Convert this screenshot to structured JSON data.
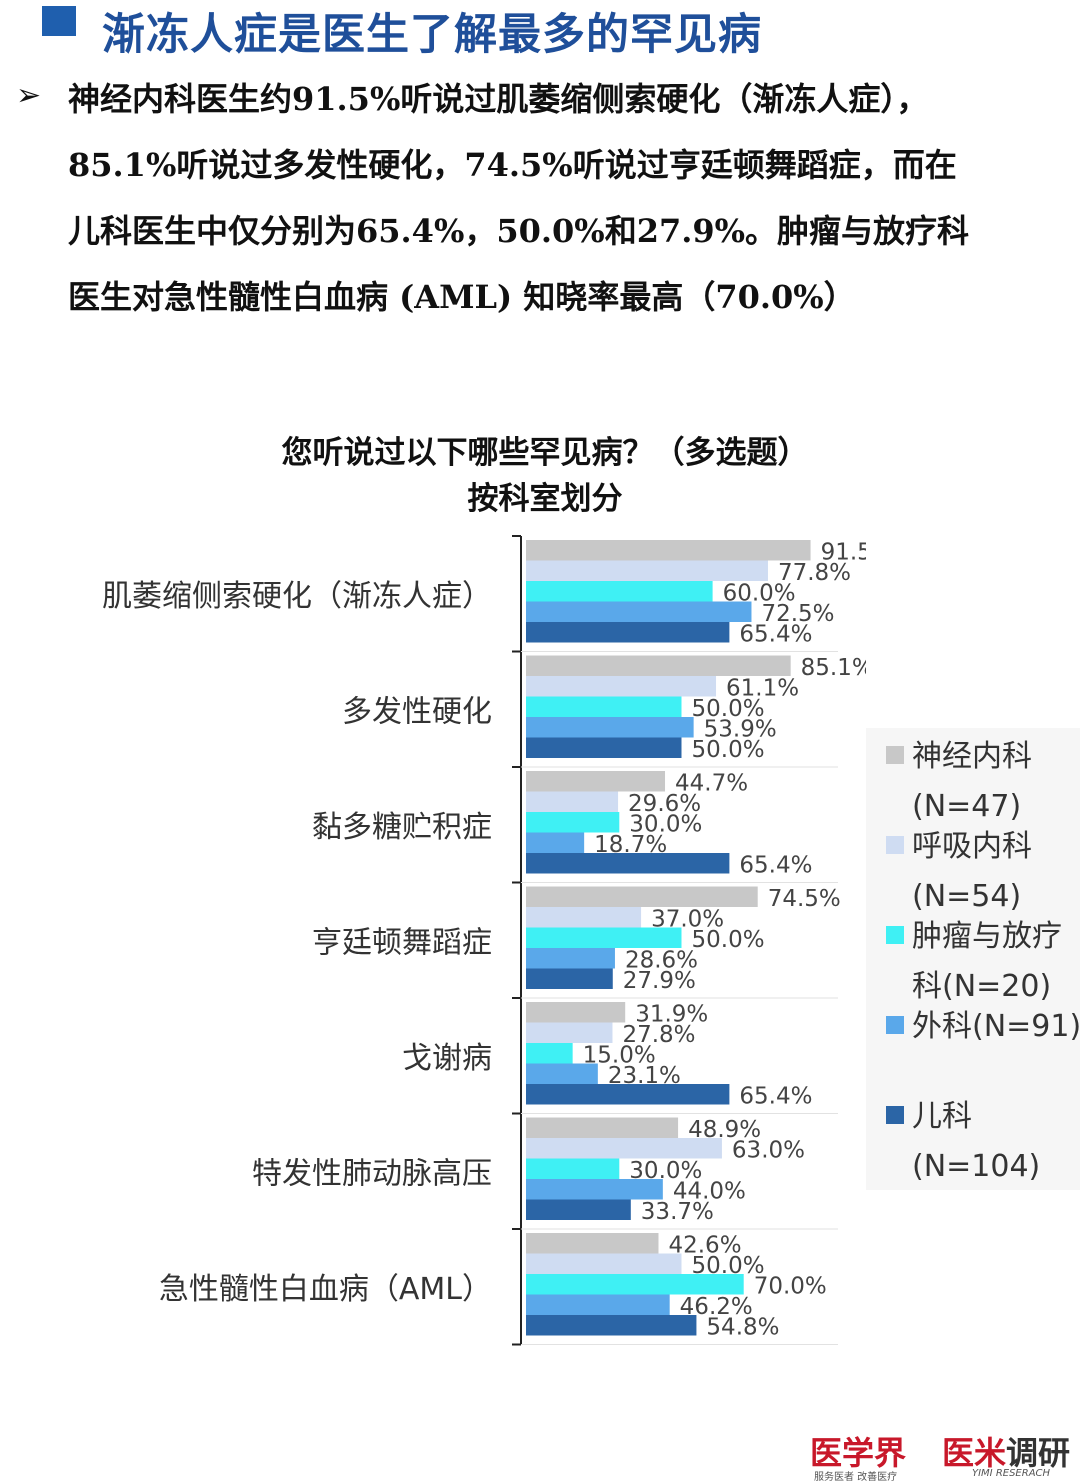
{
  "header": {
    "title": "渐冻人症是医生了解最多的罕见病"
  },
  "summary": {
    "bullet": "➢",
    "lines": [
      "神经内科医生约91.5%听说过肌萎缩侧索硬化（渐冻人症），",
      "85.1%听说过多发性硬化，74.5%听说过亨廷顿舞蹈症，而在",
      "儿科医生中仅分别为65.4%，50.0%和27.9%。肿瘤与放疗科",
      "医生对急性髓性白血病 (AML) 知晓率最高（70.0%）"
    ]
  },
  "chart_title": {
    "line1": "您听说过以下哪些罕见病？（多选题）",
    "line2": "按科室划分"
  },
  "chart_data": {
    "type": "bar",
    "orientation": "horizontal",
    "categories": [
      "肌萎缩侧索硬化（渐冻人症）",
      "多发性硬化",
      "黏多糖贮积症",
      "亨廷顿舞蹈症",
      "戈谢病",
      "特发性肺动脉高压",
      "急性髓性白血病（AML）"
    ],
    "series": [
      {
        "name": "神经内科(N=47)",
        "color": "#c8c8c8",
        "values": [
          91.5,
          85.1,
          44.7,
          74.5,
          31.9,
          48.9,
          42.6
        ]
      },
      {
        "name": "呼吸内科(N=54)",
        "color": "#cfdcf2",
        "values": [
          77.8,
          61.1,
          29.6,
          37.0,
          27.8,
          63.0,
          50.0
        ]
      },
      {
        "name": "肿瘤与放疗科(N=20)",
        "color": "#3ff0f4",
        "values": [
          60.0,
          50.0,
          30.0,
          50.0,
          15.0,
          30.0,
          70.0
        ]
      },
      {
        "name": "外科(N=91)",
        "color": "#5aa8ea",
        "values": [
          72.5,
          53.9,
          18.7,
          28.6,
          23.1,
          44.0,
          46.2
        ]
      },
      {
        "name": "儿科(N=104)",
        "color": "#2b65a6",
        "values": [
          65.4,
          50.0,
          65.4,
          27.9,
          65.4,
          33.7,
          54.8
        ]
      }
    ],
    "value_format": "%",
    "xlim": [
      0,
      100
    ],
    "grid": false,
    "legend_position": "right"
  },
  "legend": {
    "items": [
      {
        "line1": "神经内科",
        "line2": "(N=47)",
        "color": "#c8c8c8"
      },
      {
        "line1": "呼吸内科",
        "line2": "(N=54)",
        "color": "#cfdcf2"
      },
      {
        "line1": "肿瘤与放疗",
        "line2": "科(N=20)",
        "color": "#3ff0f4"
      },
      {
        "line1": "外科(N=91)",
        "line2": "",
        "color": "#5aa8ea"
      },
      {
        "line1": "儿科",
        "line2": "(N=104)",
        "color": "#2b65a6"
      }
    ]
  },
  "footer": {
    "logo1": "医学界",
    "logo1_sub": "服务医者 改善医疗",
    "logo2_red": "医米",
    "logo2_dark": "调研",
    "logo2_sub": "YIMI RESERACH"
  }
}
